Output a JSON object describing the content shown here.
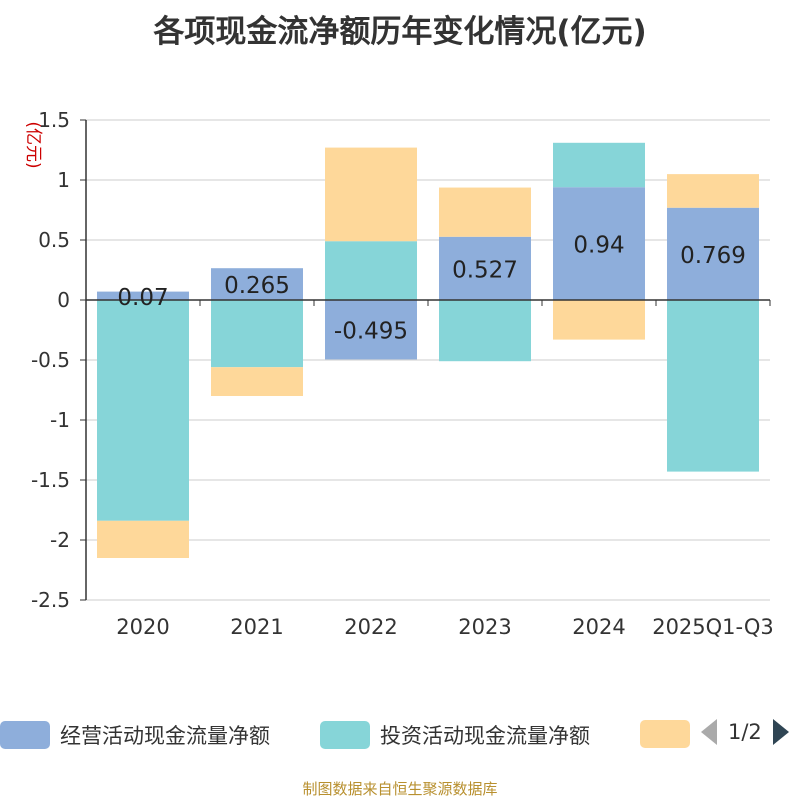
{
  "title": "各项现金流净额历年变化情况(亿元)",
  "source": "制图数据来自恒生聚源数据库",
  "pager": {
    "label": "1/2"
  },
  "colors": {
    "operating": "#8eaedb",
    "investing": "#86d5d8",
    "financing": "#fed89a"
  },
  "chart_data": {
    "type": "bar",
    "stacked": true,
    "ylabel": "(亿元)",
    "ylim": [
      -2.5,
      1.5
    ],
    "yticks": [
      1.5,
      1,
      0.5,
      0,
      -0.5,
      -1,
      -1.5,
      -2,
      -2.5
    ],
    "categories": [
      "2020",
      "2021",
      "2022",
      "2023",
      "2024",
      "2025Q1-Q3"
    ],
    "series": [
      {
        "name": "经营活动现金流量净额",
        "values": [
          0.07,
          0.265,
          -0.495,
          0.527,
          0.94,
          0.769
        ]
      },
      {
        "name": "投资活动现金流量净额",
        "values": [
          -1.84,
          -0.56,
          0.49,
          -0.51,
          0.37,
          -1.43
        ]
      },
      {
        "name": "",
        "values": [
          -0.31,
          -0.24,
          0.78,
          0.41,
          -0.33,
          0.28
        ]
      }
    ],
    "data_labels": [
      "0.07",
      "0.265",
      "-0.495",
      "0.527",
      "0.94",
      "0.769"
    ]
  },
  "legend": [
    {
      "label": "经营活动现金流量净额"
    },
    {
      "label": "投资活动现金流量净额"
    },
    {
      "label": ""
    }
  ]
}
